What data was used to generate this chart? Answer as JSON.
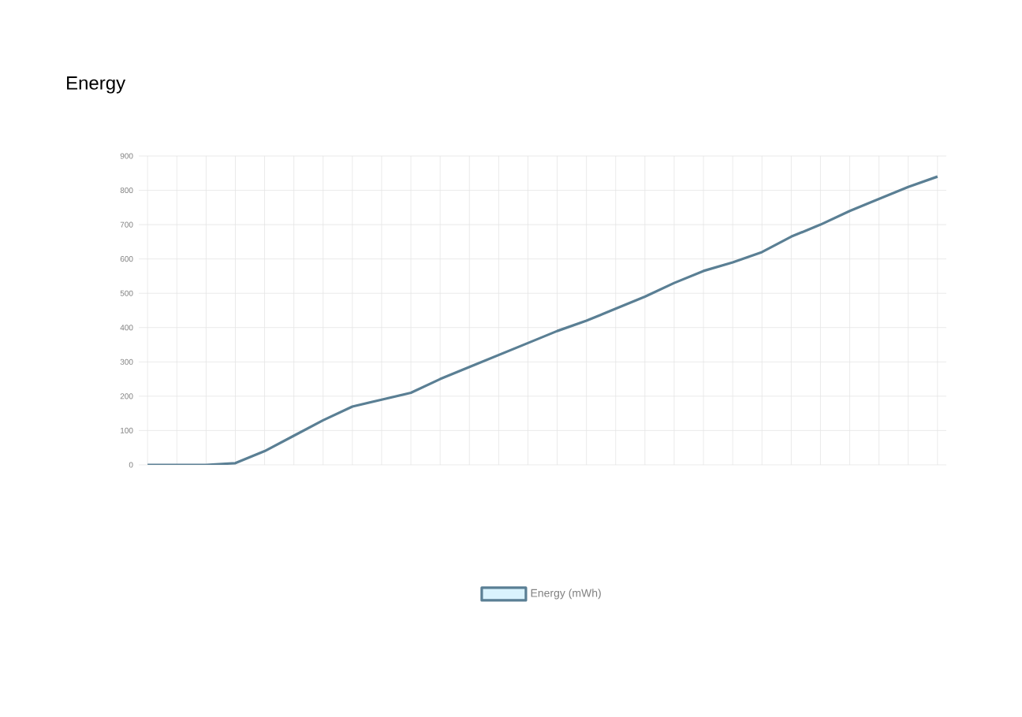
{
  "chart_data": {
    "type": "line",
    "title": "Energy",
    "categories": [
      null,
      null,
      null,
      null,
      null,
      null,
      null,
      null,
      null,
      null,
      null,
      null,
      null,
      null,
      null,
      null,
      null,
      null,
      null,
      null,
      null,
      null,
      null,
      null,
      null,
      null,
      null,
      null
    ],
    "series": [
      {
        "name": "Energy (mWh)",
        "color": "#5a7f94",
        "values": [
          0,
          0,
          0,
          5,
          40,
          85,
          130,
          170,
          190,
          210,
          250,
          285,
          320,
          355,
          390,
          420,
          455,
          490,
          530,
          565,
          590,
          620,
          665,
          700,
          740,
          775,
          810,
          840
        ]
      }
    ],
    "ylim": [
      0,
      900
    ],
    "yticks": [
      0,
      100,
      200,
      300,
      400,
      500,
      600,
      700,
      800,
      900
    ],
    "grid": true,
    "legend": "bottom"
  }
}
